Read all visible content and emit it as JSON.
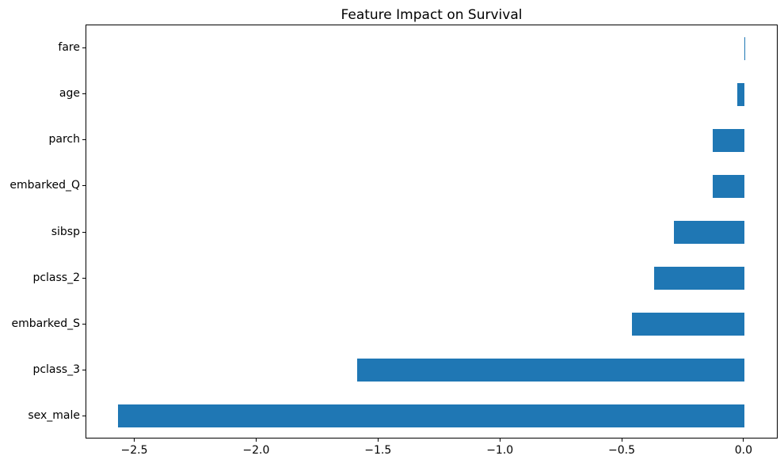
{
  "chart_data": {
    "type": "bar",
    "orientation": "horizontal",
    "title": "Feature Impact on Survival",
    "categories": [
      "fare",
      "age",
      "parch",
      "embarked_Q",
      "sibsp",
      "pclass_2",
      "embarked_S",
      "pclass_3",
      "sex_male"
    ],
    "values": [
      0.003,
      -0.03,
      -0.13,
      -0.13,
      -0.29,
      -0.37,
      -0.46,
      -1.59,
      -2.57
    ],
    "x_ticks": [
      -2.5,
      -2.0,
      -1.5,
      -1.0,
      -0.5,
      0.0
    ],
    "x_tick_labels": [
      "−2.5",
      "−2.0",
      "−1.5",
      "−1.0",
      "−0.5",
      "0.0"
    ],
    "xlim": [
      -2.7,
      0.14
    ],
    "xlabel": "",
    "ylabel": "",
    "bar_color": "#1f77b4",
    "spine_color": "#000000",
    "text_color": "#000000",
    "background_color": "#ffffff",
    "grid": false,
    "legend": false,
    "bar_fraction": 0.5
  }
}
